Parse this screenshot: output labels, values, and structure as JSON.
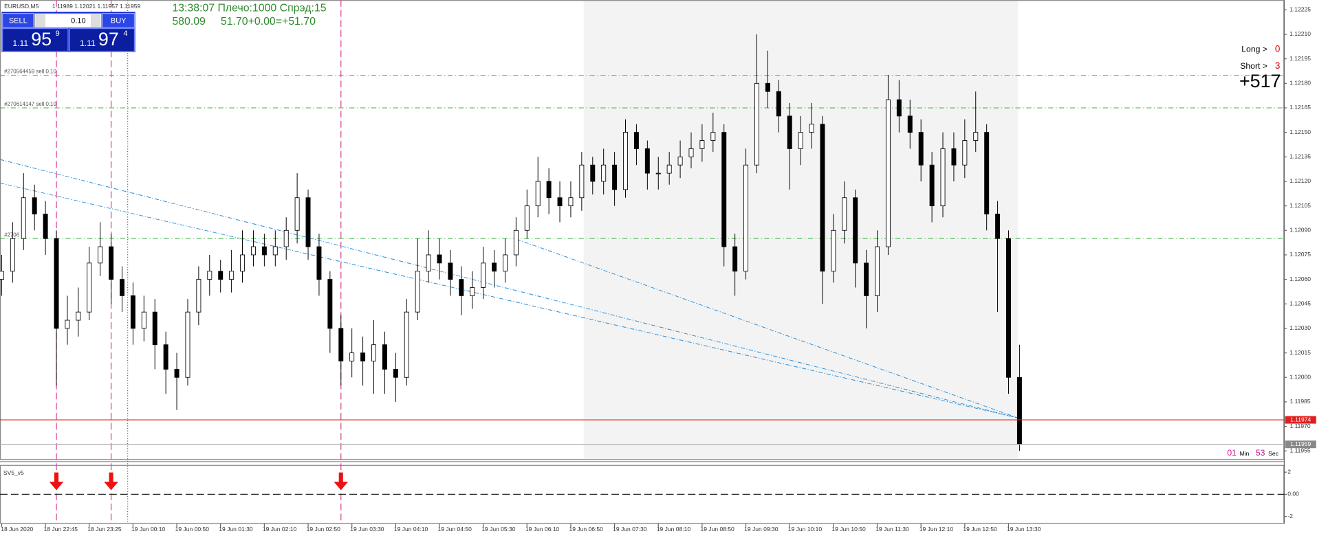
{
  "header": {
    "symbol": "EURUSD,M5",
    "ohlc": "1.11989 1.12021 1.11957 1.11959"
  },
  "trade_panel": {
    "sell_label": "SELL",
    "buy_label": "BUY",
    "lot": "0.10",
    "sell_price": {
      "prefix": "1.11",
      "main": "95",
      "small": "9"
    },
    "buy_price": {
      "prefix": "1.11",
      "main": "97",
      "small": "4"
    }
  },
  "info": {
    "line1": "13:38:07 Плечо:1000 Спрэд:15",
    "line2": "580.09     51.70+0.00=+51.70"
  },
  "positions": {
    "long_label": "Long >",
    "long_value": "0",
    "short_label": "Short >",
    "short_value": "3",
    "profit": "+517"
  },
  "timer": {
    "min": "01",
    "min_unit": "Min",
    "sec": "53",
    "sec_unit": "Sec"
  },
  "chart_data": {
    "type": "candlestick",
    "open": [
      1.1206,
      1.12065,
      1.12085,
      1.1211,
      1.121,
      1.12085,
      1.1203,
      1.12035,
      1.1204,
      1.1207,
      1.1208,
      1.1206,
      1.1205,
      1.1203,
      1.1204,
      1.1202,
      1.12005,
      1.12,
      1.1204,
      1.1206,
      1.12065,
      1.1206,
      1.12065,
      1.12075,
      1.1208,
      1.12075,
      1.1208,
      1.1209,
      1.1211,
      1.1208,
      1.1206,
      1.1203,
      1.1201,
      1.12015,
      1.1201,
      1.1202,
      1.12005,
      1.12,
      1.1204,
      1.12065,
      1.12075,
      1.1207,
      1.1206,
      1.1205,
      1.12055,
      1.1207,
      1.12065,
      1.12075,
      1.1209,
      1.12105,
      1.1212,
      1.1211,
      1.12105,
      1.1211,
      1.1213,
      1.1212,
      1.1213,
      1.12115,
      1.1215,
      1.1214,
      1.12125,
      1.12125,
      1.1213,
      1.12135,
      1.1214,
      1.12145,
      1.1215,
      1.1208,
      1.12065,
      1.1213,
      1.1218,
      1.12175,
      1.1216,
      1.1214,
      1.1215,
      1.12155,
      1.12065,
      1.1209,
      1.1211,
      1.1207,
      1.1205,
      1.1208,
      1.1217,
      1.1216,
      1.1215,
      1.1213,
      1.12105,
      1.1214,
      1.1213,
      1.12145,
      1.1215,
      1.121,
      1.12085,
      1.12
    ],
    "high": [
      1.12075,
      1.12095,
      1.12125,
      1.12118,
      1.12108,
      1.1209,
      1.1205,
      1.12055,
      1.1208,
      1.12095,
      1.12088,
      1.12068,
      1.12058,
      1.1205,
      1.12048,
      1.12028,
      1.12015,
      1.12048,
      1.12068,
      1.12075,
      1.12072,
      1.12078,
      1.1209,
      1.1209,
      1.12088,
      1.1209,
      1.12098,
      1.12125,
      1.12115,
      1.12088,
      1.12065,
      1.12038,
      1.1203,
      1.12025,
      1.12035,
      1.12028,
      1.12015,
      1.12048,
      1.12085,
      1.1209,
      1.12085,
      1.12078,
      1.12068,
      1.12065,
      1.1208,
      1.12078,
      1.12085,
      1.12098,
      1.12115,
      1.12135,
      1.12128,
      1.1212,
      1.1212,
      1.12138,
      1.12135,
      1.1214,
      1.12138,
      1.12158,
      1.12155,
      1.12145,
      1.12135,
      1.12138,
      1.12145,
      1.1215,
      1.12155,
      1.12162,
      1.12155,
      1.12088,
      1.1214,
      1.1221,
      1.122,
      1.12182,
      1.12168,
      1.1216,
      1.12168,
      1.1216,
      1.121,
      1.1212,
      1.12115,
      1.12078,
      1.1209,
      1.12185,
      1.12182,
      1.1217,
      1.12158,
      1.12138,
      1.1215,
      1.1215,
      1.12158,
      1.12175,
      1.12155,
      1.12108,
      1.1209,
      1.1202
    ],
    "low": [
      1.1205,
      1.12058,
      1.12078,
      1.1209,
      1.12075,
      1.11995,
      1.1202,
      1.12025,
      1.12035,
      1.12062,
      1.12045,
      1.1204,
      1.1202,
      1.12022,
      1.12005,
      1.1199,
      1.1198,
      1.11995,
      1.12032,
      1.1205,
      1.12052,
      1.12052,
      1.12058,
      1.12068,
      1.12068,
      1.12068,
      1.12072,
      1.12082,
      1.12072,
      1.1205,
      1.12015,
      1.11995,
      1.12,
      1.11995,
      1.1199,
      1.1199,
      1.11985,
      1.11995,
      1.12035,
      1.12058,
      1.1206,
      1.1205,
      1.12038,
      1.12042,
      1.12048,
      1.12055,
      1.12058,
      1.12068,
      1.12085,
      1.12098,
      1.121,
      1.12095,
      1.12098,
      1.12102,
      1.12112,
      1.12112,
      1.12105,
      1.1211,
      1.1213,
      1.12115,
      1.12115,
      1.12118,
      1.12122,
      1.12128,
      1.12132,
      1.12138,
      1.12068,
      1.1205,
      1.1206,
      1.12125,
      1.12165,
      1.1215,
      1.12115,
      1.1213,
      1.1214,
      1.12045,
      1.12058,
      1.12082,
      1.12055,
      1.1203,
      1.1204,
      1.12075,
      1.1215,
      1.1214,
      1.1212,
      1.12095,
      1.12098,
      1.1212,
      1.12122,
      1.12138,
      1.1209,
      1.1204,
      1.1199,
      1.11955
    ],
    "close": [
      1.12065,
      1.12085,
      1.1211,
      1.121,
      1.12085,
      1.1203,
      1.12035,
      1.1204,
      1.1207,
      1.1208,
      1.1206,
      1.1205,
      1.1203,
      1.1204,
      1.1202,
      1.12005,
      1.12,
      1.1204,
      1.1206,
      1.12065,
      1.1206,
      1.12065,
      1.12075,
      1.1208,
      1.12075,
      1.1208,
      1.1209,
      1.1211,
      1.1208,
      1.1206,
      1.1203,
      1.1201,
      1.12015,
      1.1201,
      1.1202,
      1.12005,
      1.12,
      1.1204,
      1.12065,
      1.12075,
      1.1207,
      1.1206,
      1.1205,
      1.12055,
      1.1207,
      1.12065,
      1.12075,
      1.1209,
      1.12105,
      1.1212,
      1.1211,
      1.12105,
      1.1211,
      1.1213,
      1.1212,
      1.1213,
      1.12115,
      1.1215,
      1.1214,
      1.12125,
      1.12125,
      1.1213,
      1.12135,
      1.1214,
      1.12145,
      1.1215,
      1.1208,
      1.12065,
      1.1213,
      1.1218,
      1.12175,
      1.1216,
      1.1214,
      1.1215,
      1.12155,
      1.12065,
      1.1209,
      1.1211,
      1.1207,
      1.1205,
      1.1208,
      1.1217,
      1.1216,
      1.1215,
      1.1213,
      1.12105,
      1.1214,
      1.1213,
      1.12145,
      1.1215,
      1.121,
      1.12085,
      1.12,
      1.11959
    ],
    "ylim": [
      1.1195,
      1.12231
    ],
    "yticks": [
      1.12225,
      {
        "value": 1.1221,
        "label": "1.12210"
      },
      1.12195,
      {
        "value": 1.1218,
        "label": "1.12180"
      },
      1.12165,
      {
        "value": 1.1215,
        "label": "1.12150"
      },
      1.12135,
      {
        "value": 1.1212,
        "label": "1.12120"
      },
      1.12105,
      {
        "value": 1.1209,
        "label": "1.12090"
      },
      1.12075,
      {
        "value": 1.1206,
        "label": "1.12060"
      },
      1.12045,
      {
        "value": 1.1203,
        "label": "1.12030"
      },
      1.12015,
      {
        "value": 1.12,
        "label": "1.12000"
      },
      1.11985,
      {
        "value": 1.1197,
        "label": "1.11970"
      },
      1.11955
    ],
    "x_labels": [
      "18 Jun 2020",
      "18 Jun 22:45",
      "18 Jun 23:25",
      "19 Jun 00:10",
      "19 Jun 00:50",
      "19 Jun 01:30",
      "19 Jun 02:10",
      "19 Jun 02:50",
      "19 Jun 03:30",
      "19 Jun 04:10",
      "19 Jun 04:50",
      "19 Jun 05:30",
      "19 Jun 06:10",
      "19 Jun 06:50",
      "19 Jun 07:30",
      "19 Jun 08:10",
      "19 Jun 08:50",
      "19 Jun 09:30",
      "19 Jun 10:10",
      "19 Jun 10:50",
      "19 Jun 11:30",
      "19 Jun 12:10",
      "19 Jun 12:50",
      "19 Jun 13:30"
    ],
    "orders": [
      {
        "label": "#270564459 sell 0.10",
        "price": 1.12185
      },
      {
        "label": "#270614147 sell 0.10",
        "price": 1.12165
      },
      {
        "label": "#2706",
        "price": 1.12085
      }
    ],
    "ask": 1.11974,
    "bid": 1.11959,
    "signals": [
      5,
      10,
      31
    ]
  },
  "indicator": {
    "name": "SV5_v5",
    "ylim": [
      -2.5,
      2.5
    ],
    "yticks": [
      2,
      {
        "value": 0,
        "label": "0.00"
      },
      -2
    ]
  }
}
